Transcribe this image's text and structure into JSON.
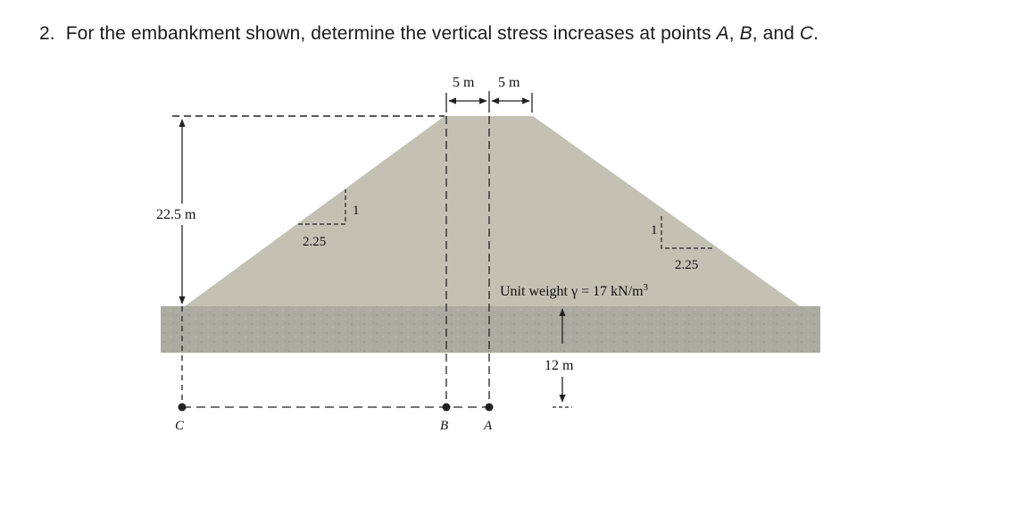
{
  "question": {
    "number": "2.",
    "text_before": "For the embankment shown, determine the vertical stress increases at points ",
    "point_a": "A",
    "sep1": ", ",
    "point_b": "B",
    "sep2": ", and ",
    "point_c": "C",
    "text_after": "."
  },
  "figure": {
    "top_dim_left": "5 m",
    "top_dim_right": "5 m",
    "height_label": "22.5 m",
    "slope_left_vertical": "1",
    "slope_left_horizontal": "2.25",
    "slope_right_vertical": "1",
    "slope_right_horizontal": "2.25",
    "unit_weight_prefix": "Unit weight γ = 17 kN/m",
    "unit_weight_exponent": "3",
    "depth_label": "12 m",
    "point_labels": {
      "c": "C",
      "b": "B",
      "a": "A"
    },
    "colors": {
      "embankment": "#c2c1b4",
      "soil_layer": "#acaba1",
      "line": "#222222"
    }
  }
}
